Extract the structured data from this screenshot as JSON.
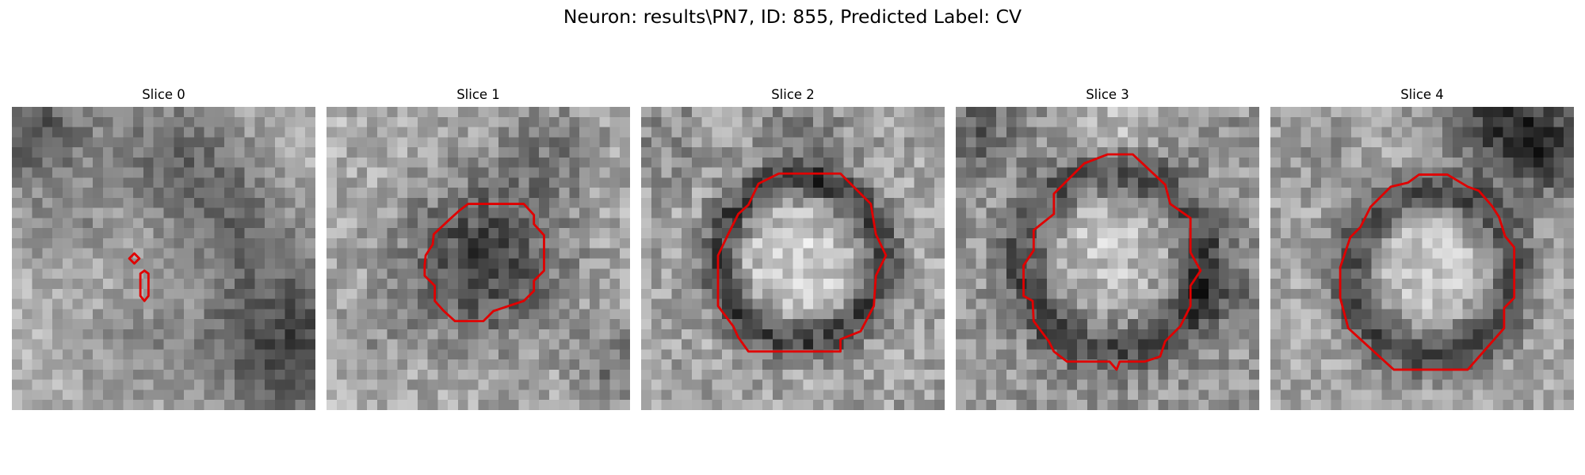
{
  "figure": {
    "title": "Neuron: results\\PN7, ID: 855, Predicted Label: CV",
    "contour_color": "#e00000"
  },
  "slices": [
    {
      "title": "Slice 0"
    },
    {
      "title": "Slice 1"
    },
    {
      "title": "Slice 2"
    },
    {
      "title": "Slice 3"
    },
    {
      "title": "Slice 4"
    }
  ]
}
